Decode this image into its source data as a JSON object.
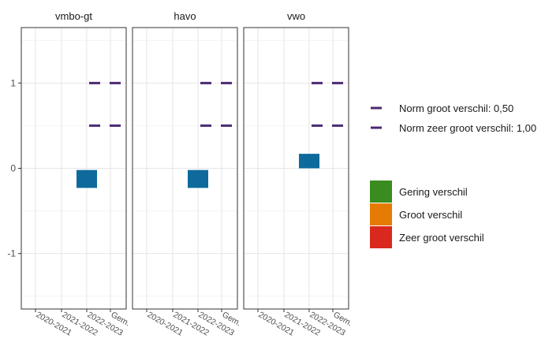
{
  "chart_data": {
    "type": "faceted-range",
    "ylim": [
      -1.65,
      1.65
    ],
    "y_ticks": [
      -1,
      0,
      1
    ],
    "y_tick_labels": [
      "-1",
      "0",
      "1"
    ],
    "x_categories": [
      "2020-2021",
      "2021-2022",
      "2022-2023",
      "Gem."
    ],
    "grid": true,
    "legend_position": "right",
    "facets": [
      {
        "title": "vmbo-gt",
        "boxes": [
          {
            "x": "2022-2023",
            "ymin": -0.23,
            "ymax": -0.02,
            "color": "#0E6A9B"
          }
        ],
        "norms": [
          {
            "value": 1.0,
            "from": "2022-2023",
            "to": "Gem."
          },
          {
            "value": 0.5,
            "from": "2022-2023",
            "to": "Gem."
          }
        ]
      },
      {
        "title": "havo",
        "boxes": [
          {
            "x": "2022-2023",
            "ymin": -0.23,
            "ymax": -0.02,
            "color": "#0E6A9B"
          }
        ],
        "norms": [
          {
            "value": 1.0,
            "from": "2022-2023",
            "to": "Gem."
          },
          {
            "value": 0.5,
            "from": "2022-2023",
            "to": "Gem."
          }
        ]
      },
      {
        "title": "vwo",
        "boxes": [
          {
            "x": "2022-2023",
            "ymin": 0.0,
            "ymax": 0.17,
            "color": "#0E6A9B"
          }
        ],
        "norms": [
          {
            "value": 1.0,
            "from": "2022-2023",
            "to": "Gem."
          },
          {
            "value": 0.5,
            "from": "2022-2023",
            "to": "Gem."
          }
        ]
      }
    ],
    "legend": {
      "norm_lines": [
        {
          "label": "Norm groot verschil: 0,50",
          "color": "#4B2A73"
        },
        {
          "label": "Norm zeer groot verschil: 1,00",
          "color": "#4B2A73"
        }
      ],
      "categories": [
        {
          "label": "Gering verschil",
          "color": "#3A8C1E"
        },
        {
          "label": "Groot verschil",
          "color": "#E57B05"
        },
        {
          "label": "Zeer groot verschil",
          "color": "#D9291E"
        }
      ]
    }
  }
}
